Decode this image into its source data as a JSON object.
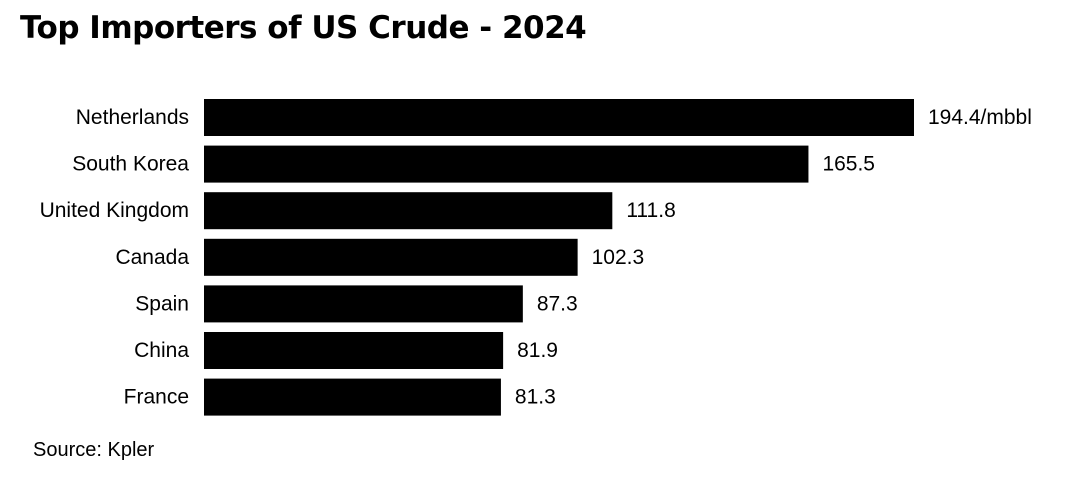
{
  "title": "Top Importers of US Crude - 2024",
  "source": "Source: Kpler",
  "chart_data": {
    "type": "bar",
    "orientation": "horizontal",
    "title": "Top Importers of US Crude - 2024",
    "categories": [
      "Netherlands",
      "South Korea",
      "United Kingdom",
      "Canada",
      "Spain",
      "China",
      "France"
    ],
    "values": [
      194.4,
      165.5,
      111.8,
      102.3,
      87.3,
      81.9,
      81.3
    ],
    "value_labels": [
      "194.4/mbbl",
      "165.5",
      "111.8",
      "102.3",
      "87.3",
      "81.9",
      "81.3"
    ],
    "unit": "mbbl",
    "xlim": [
      0,
      194.4
    ],
    "grid": false,
    "legend": "none",
    "bar_color": "#000000"
  }
}
